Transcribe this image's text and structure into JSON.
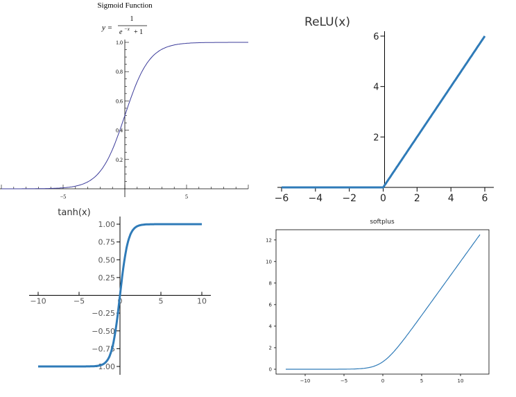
{
  "colors": {
    "sigmoid_line": "#3b3b9a",
    "relu_line": "#2f7bb8",
    "tanh_line": "#2f7bb8",
    "softplus_line": "#2f7bb8",
    "axis": "#000000",
    "tick_label_gray": "#555555"
  },
  "chart_data": [
    {
      "id": "sigmoid",
      "type": "line",
      "title": "Sigmoid Function",
      "formula": {
        "lhs": "y =",
        "numerator": "1",
        "denominator_base": "e",
        "denominator_exp": "−x",
        "denominator_rest": "+ 1"
      },
      "xlim": [
        -10,
        10
      ],
      "ylim": [
        0,
        1
      ],
      "xticks": [
        -5,
        5
      ],
      "yticks": [
        0.2,
        0.4,
        0.6,
        0.8,
        1.0
      ],
      "xtick_labels": [
        "−5",
        "5"
      ],
      "ytick_labels": [
        "0.2",
        "0.4",
        "0.6",
        "0.8",
        "1.0"
      ],
      "series": [
        {
          "function": "sigmoid"
        }
      ]
    },
    {
      "id": "relu",
      "type": "line",
      "title": "ReLU(x)",
      "xlim": [
        -6,
        6
      ],
      "ylim": [
        0,
        6
      ],
      "xticks": [
        -6,
        -4,
        -2,
        0,
        2,
        4,
        6
      ],
      "yticks": [
        2,
        4,
        6
      ],
      "xtick_labels": [
        "−6",
        "−4",
        "−2",
        "0",
        "2",
        "4",
        "6"
      ],
      "ytick_labels": [
        "2",
        "4",
        "6"
      ],
      "series": [
        {
          "function": "relu"
        }
      ]
    },
    {
      "id": "tanh",
      "type": "line",
      "title": "tanh(x)",
      "xlim": [
        -10,
        10
      ],
      "ylim": [
        -1,
        1
      ],
      "xticks": [
        -10,
        -5,
        0,
        5,
        10
      ],
      "yticks": [
        -1.0,
        -0.75,
        -0.5,
        -0.25,
        0.25,
        0.5,
        0.75,
        1.0
      ],
      "xtick_labels": [
        "−10",
        "−5",
        "0",
        "5",
        "10"
      ],
      "ytick_labels": [
        "−1.00",
        "−0.75",
        "−0.50",
        "−0.25",
        "0.25",
        "0.50",
        "0.75",
        "1.00"
      ],
      "series": [
        {
          "function": "tanh"
        }
      ]
    },
    {
      "id": "softplus",
      "type": "line",
      "title": "softplus",
      "xlim": [
        -12.5,
        12.5
      ],
      "ylim": [
        0,
        12.5
      ],
      "xticks": [
        -10,
        -5,
        0,
        5,
        10
      ],
      "yticks": [
        0,
        2,
        4,
        6,
        8,
        10,
        12
      ],
      "xtick_labels": [
        "−10",
        "−5",
        "0",
        "5",
        "10"
      ],
      "ytick_labels": [
        "0",
        "2",
        "4",
        "6",
        "8",
        "10",
        "12"
      ],
      "series": [
        {
          "function": "softplus"
        }
      ]
    }
  ]
}
